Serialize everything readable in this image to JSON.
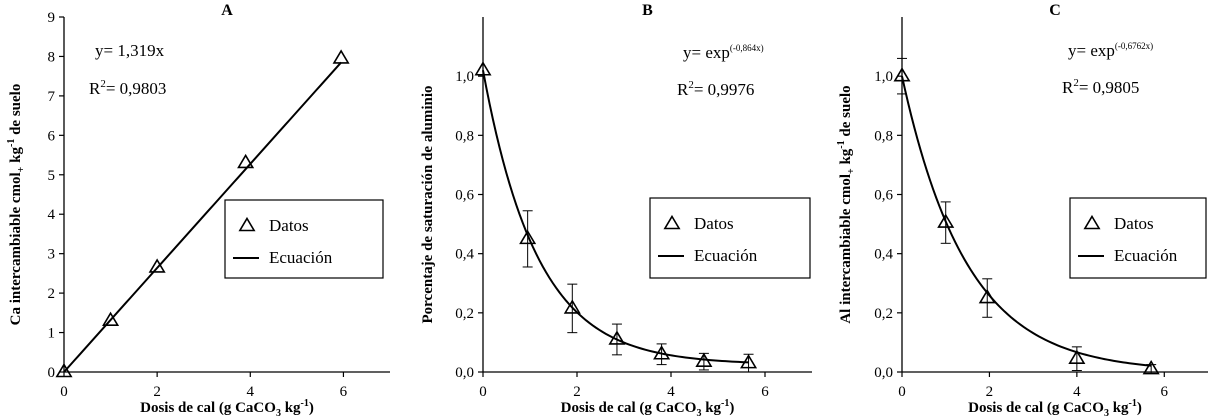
{
  "chart_data": [
    {
      "type": "scatter",
      "panel_label": "A",
      "xlabel": {
        "pre": "Dosis de cal (g CaCO",
        "sub": "3",
        "mid": " kg",
        "sup": "-1",
        "post": ")"
      },
      "ylabel": {
        "pre": "Ca intercambiable cmol",
        "sub": "+",
        "mid": " kg",
        "sup": "-1",
        "post": " de suelo"
      },
      "xlim": [
        0,
        7
      ],
      "ylim": [
        0,
        9
      ],
      "xticks": [
        0,
        2,
        4,
        6
      ],
      "yticks": [
        0,
        1,
        2,
        3,
        4,
        5,
        6,
        7,
        8,
        9
      ],
      "x_tick_labels": [
        "0",
        "2",
        "4",
        "6"
      ],
      "y_tick_labels": [
        "0",
        "1",
        "2",
        "3",
        "4",
        "5",
        "6",
        "7",
        "8",
        "9"
      ],
      "series": [
        {
          "name": "Datos",
          "marker": "triangle-open",
          "points": [
            {
              "x": 0,
              "y": 0
            },
            {
              "x": 1.0,
              "y": 1.3
            },
            {
              "x": 2.0,
              "y": 2.65
            },
            {
              "x": 3.9,
              "y": 5.3
            },
            {
              "x": 5.95,
              "y": 7.95
            }
          ]
        },
        {
          "name": "Ecuación",
          "kind": "linear",
          "slope": 1.319,
          "x_range": [
            0,
            5.95
          ]
        }
      ],
      "equation": {
        "text": "y= 1,319x"
      },
      "r2": {
        "pre": "R",
        "sup": "2",
        "post": "= 0,9803"
      },
      "legend": {
        "items": [
          "Datos",
          "Ecuación"
        ],
        "position": "bottom-right"
      }
    },
    {
      "type": "scatter",
      "panel_label": "B",
      "xlabel": {
        "pre": "Dosis de cal (g CaCO",
        "sub": "3",
        "mid": " kg",
        "sup": "-1",
        "post": ")"
      },
      "ylabel": {
        "pre": "Porcentaje de saturación de aluminio",
        "sub": "",
        "mid": "",
        "sup": "",
        "post": ""
      },
      "xlim": [
        0,
        7
      ],
      "ylim": [
        0,
        1.2
      ],
      "xticks": [
        0,
        2,
        4,
        6
      ],
      "yticks": [
        0,
        0.2,
        0.4,
        0.6,
        0.8,
        1.0
      ],
      "x_tick_labels": [
        "0",
        "2",
        "4",
        "6"
      ],
      "y_tick_labels": [
        "0,0",
        "0,2",
        "0,4",
        "0,6",
        "0,8",
        "1,0"
      ],
      "series": [
        {
          "name": "Datos",
          "marker": "triangle-open",
          "points": [
            {
              "x": 0,
              "y": 1.02,
              "err": 0
            },
            {
              "x": 0.95,
              "y": 0.45,
              "err": 0.095
            },
            {
              "x": 1.9,
              "y": 0.215,
              "err": 0.082
            },
            {
              "x": 2.85,
              "y": 0.11,
              "err": 0.052
            },
            {
              "x": 3.8,
              "y": 0.06,
              "err": 0.035
            },
            {
              "x": 4.7,
              "y": 0.035,
              "err": 0.028
            },
            {
              "x": 5.65,
              "y": 0.03,
              "err": 0.03
            }
          ]
        },
        {
          "name": "Ecuación",
          "kind": "exponential",
          "rate": -0.864,
          "asymptote": 0.025,
          "start": 1.02,
          "x_range": [
            0,
            5.65
          ]
        }
      ],
      "equation": {
        "text": "y= exp",
        "sup": "(-0,864x)"
      },
      "r2": {
        "pre": "R",
        "sup": "2",
        "post": "= 0,9976"
      },
      "legend": {
        "items": [
          "Datos",
          "Ecuación"
        ],
        "position": "right"
      }
    },
    {
      "type": "scatter",
      "panel_label": "C",
      "xlabel": {
        "pre": "Dosis de cal (g CaCO",
        "sub": "3",
        "mid": " kg",
        "sup": "-1",
        "post": ")"
      },
      "ylabel": {
        "pre": "Al intercambiable cmol",
        "sub": "+",
        "mid": " kg",
        "sup": "-1",
        "post": " de suelo"
      },
      "xlim": [
        0,
        7
      ],
      "ylim": [
        0,
        1.2
      ],
      "xticks": [
        0,
        2,
        4,
        6
      ],
      "yticks": [
        0,
        0.2,
        0.4,
        0.6,
        0.8,
        1.0
      ],
      "x_tick_labels": [
        "0",
        "2",
        "4",
        "6"
      ],
      "y_tick_labels": [
        "0,0",
        "0,2",
        "0,4",
        "0,6",
        "0,8",
        "1,0"
      ],
      "series": [
        {
          "name": "Datos",
          "marker": "triangle-open",
          "points": [
            {
              "x": 0,
              "y": 1.0,
              "err": 0.06
            },
            {
              "x": 1.0,
              "y": 0.505,
              "err": 0.07
            },
            {
              "x": 1.95,
              "y": 0.25,
              "err": 0.065
            },
            {
              "x": 4.0,
              "y": 0.045,
              "err": 0.04
            },
            {
              "x": 5.7,
              "y": 0.01,
              "err": 0.015
            }
          ]
        },
        {
          "name": "Ecuación",
          "kind": "exponential",
          "rate": -0.6762,
          "asymptote": 0,
          "start": 1.0,
          "x_range": [
            0,
            5.7
          ]
        }
      ],
      "equation": {
        "text": "y= exp",
        "sup": "(-0,6762x)"
      },
      "r2": {
        "pre": "R",
        "sup": "2",
        "post": "= 0,9805"
      },
      "legend": {
        "items": [
          "Datos",
          "Ecuación"
        ],
        "position": "right"
      }
    }
  ]
}
